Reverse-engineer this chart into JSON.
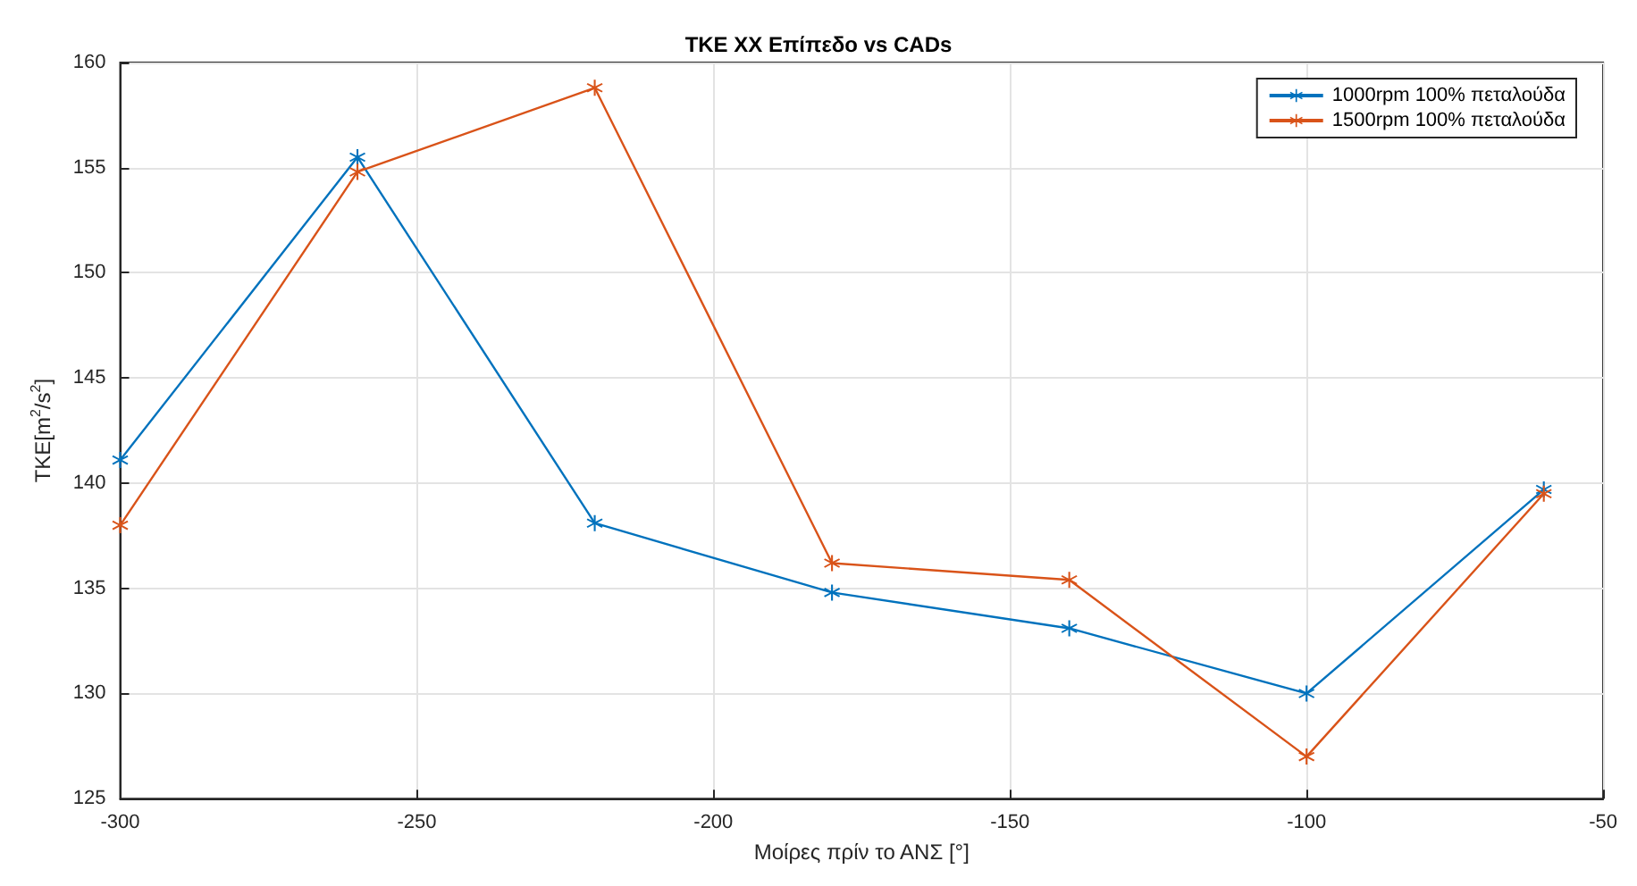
{
  "chart_data": {
    "type": "line",
    "title": "TKE XX Επίπεδο vs CADs",
    "xlabel": "Μοίρες πρίν το ΑΝΣ [°]",
    "ylabel": "TKE[m$^{2}$/s$^{2}$]",
    "x": [
      -300,
      -260,
      -220,
      -180,
      -140,
      -100,
      -60
    ],
    "series": [
      {
        "name": "1000rpm 100% πεταλούδα",
        "color": "#0072bd",
        "values": [
          141.1,
          155.5,
          138.1,
          134.8,
          133.1,
          130.0,
          139.7
        ]
      },
      {
        "name": "1500rpm 100% πεταλούδα",
        "color": "#d95319",
        "values": [
          138.0,
          154.8,
          158.8,
          136.2,
          135.4,
          127.0,
          139.5
        ]
      }
    ],
    "xlim": [
      -300,
      -50
    ],
    "xticks": [
      -300,
      -250,
      -200,
      -150,
      -100,
      -50
    ],
    "ylim": [
      125,
      160
    ],
    "yticks": [
      125,
      130,
      135,
      140,
      145,
      150,
      155,
      160
    ],
    "grid": true,
    "legend": "top right",
    "marker": "star",
    "line_style": "solid"
  }
}
